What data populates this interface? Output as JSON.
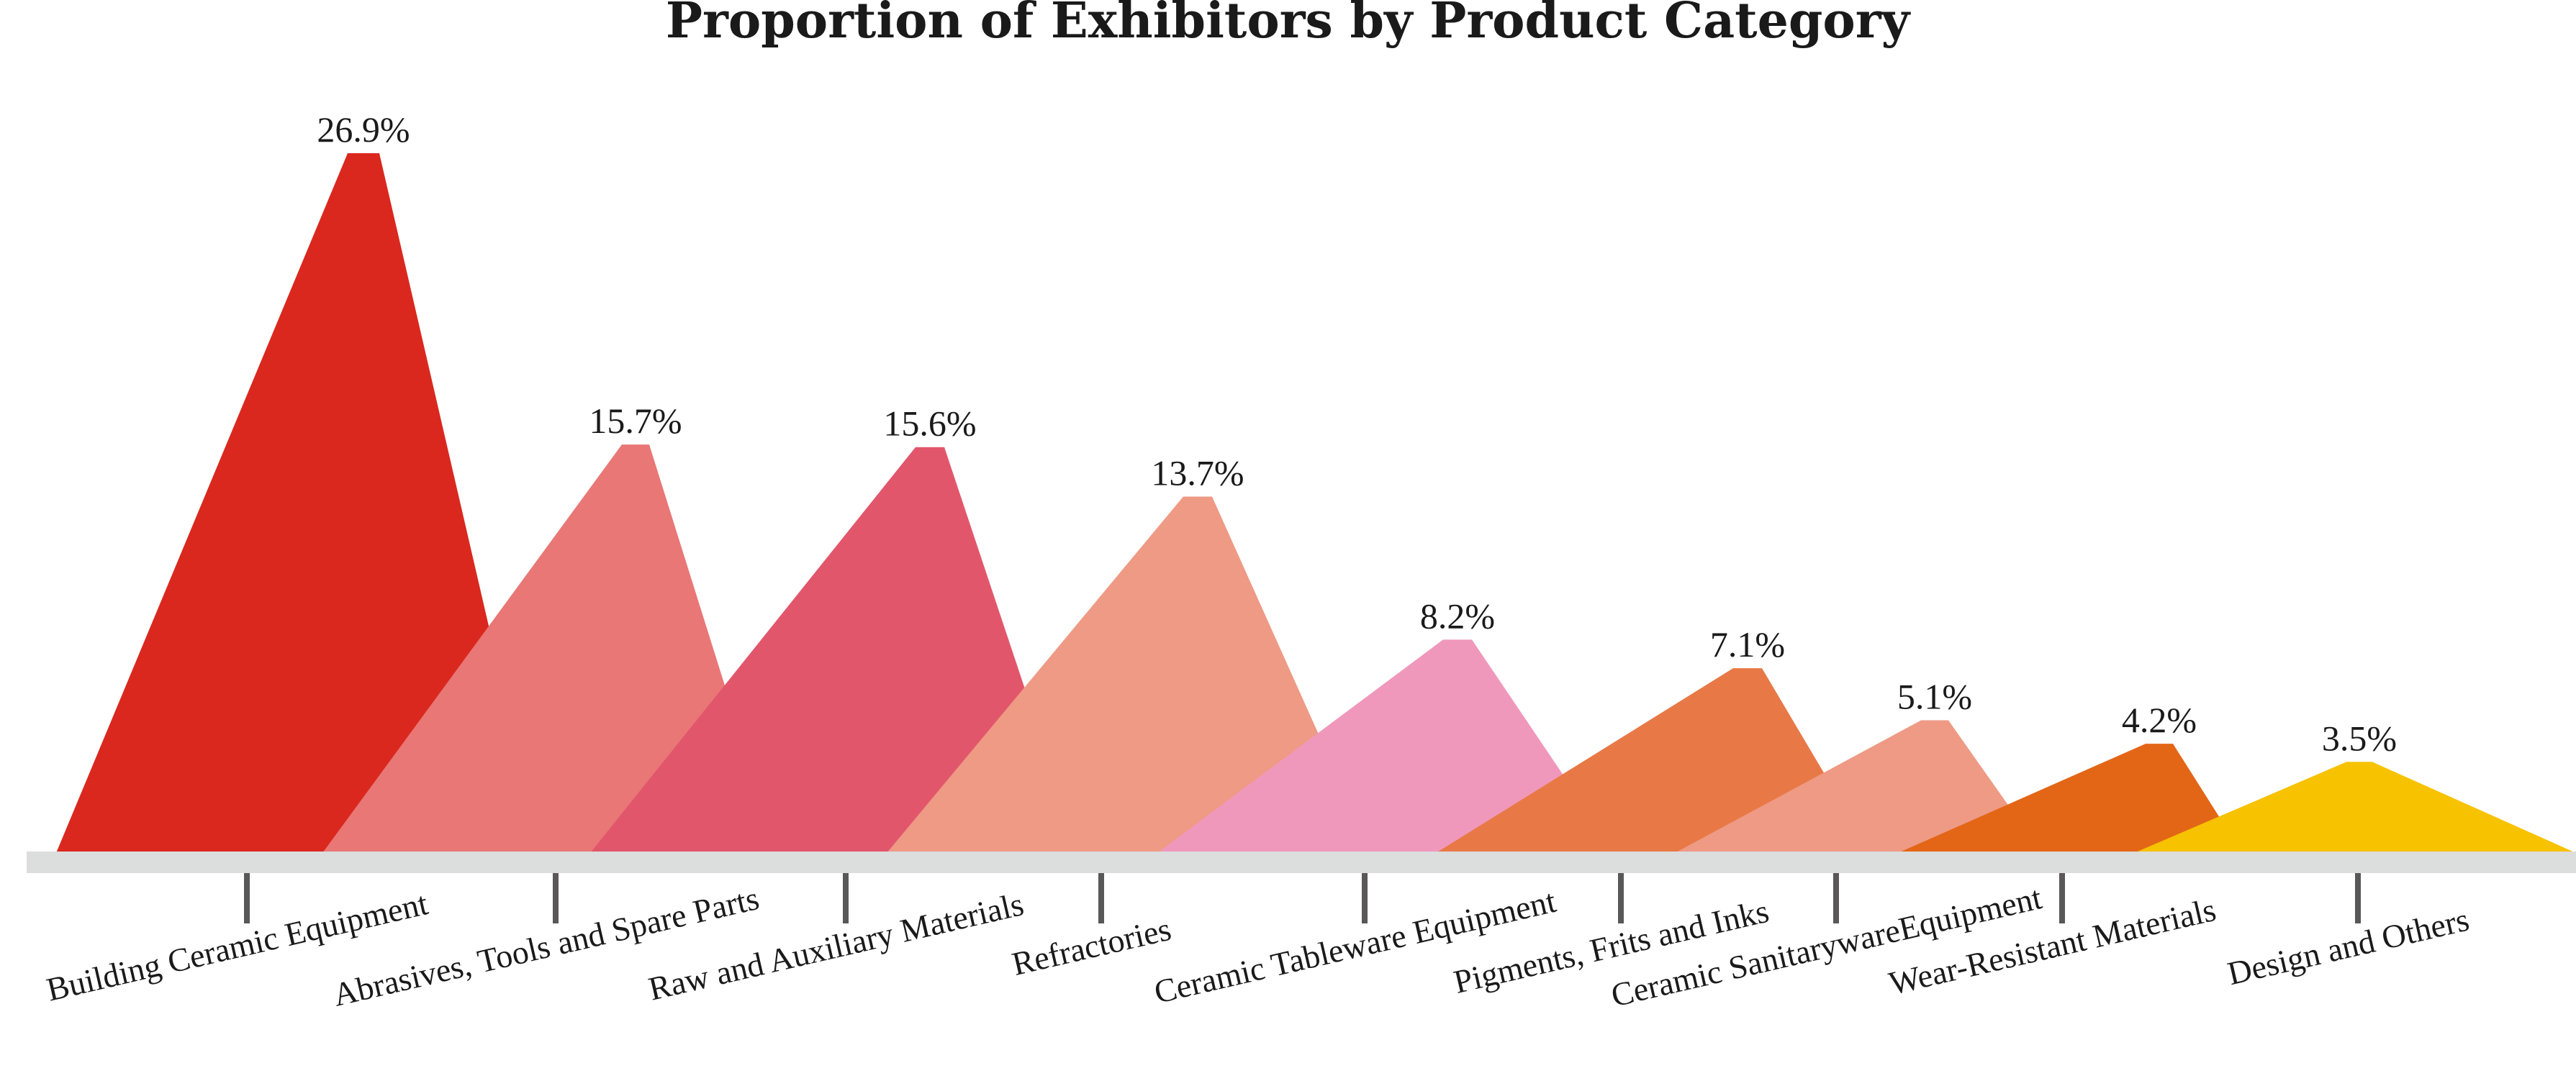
{
  "chart_data": {
    "type": "area",
    "title": "Proportion of Exhibitors by Product Category",
    "categories": [
      "Building Ceramic Equipment",
      "Abrasives, Tools and Spare Parts",
      "Raw and Auxiliary Materials",
      "Refractories",
      "Ceramic Tableware Equipment",
      "Pigments, Frits and Inks",
      "Ceramic SanitarywareEquipment",
      "Wear-Resistant Materials",
      "Design and Others"
    ],
    "values": [
      26.9,
      15.7,
      15.6,
      13.7,
      8.2,
      7.1,
      5.1,
      4.2,
      3.5
    ],
    "value_labels": [
      "26.9%",
      "15.7%",
      "15.6%",
      "13.7%",
      "8.2%",
      "7.1%",
      "5.1%",
      "4.2%",
      "3.5%"
    ],
    "colors": [
      "#da281f",
      "#e87776",
      "#e2566b",
      "#ee9a85",
      "#f098bb",
      "#e87946",
      "#ee9a85",
      "#e36617",
      "#f7c200"
    ],
    "axis_color": "#dcdddd",
    "tick_color": "#595757",
    "ylim": [
      0,
      26.9
    ],
    "legend": "none",
    "grid": false
  }
}
